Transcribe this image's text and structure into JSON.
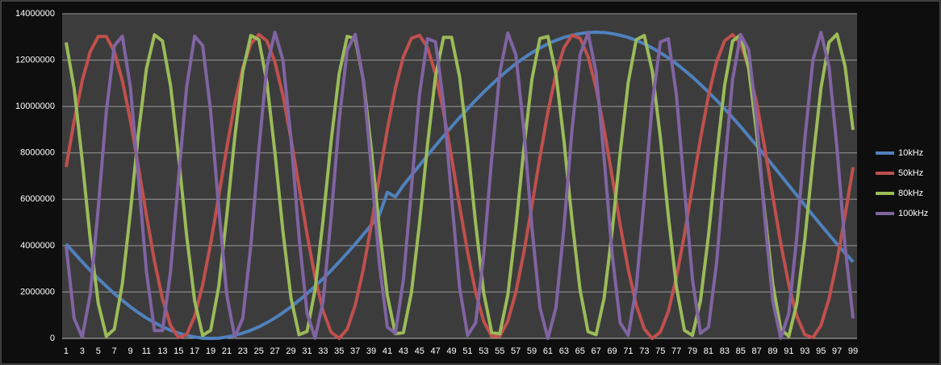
{
  "chart_data": {
    "type": "line",
    "categories": [
      "1",
      null,
      "3",
      null,
      "5",
      null,
      "7",
      null,
      "9",
      null,
      "11",
      null,
      "13",
      null,
      "15",
      null,
      "17",
      null,
      "19",
      null,
      "21",
      null,
      "23",
      null,
      "25",
      null,
      "27",
      null,
      "29",
      null,
      "31",
      null,
      "33",
      null,
      "35",
      null,
      "37",
      null,
      "39",
      null,
      "41",
      null,
      "43",
      null,
      "45",
      null,
      "47",
      null,
      "49",
      null,
      "51",
      null,
      "53",
      null,
      "55",
      null,
      "57",
      null,
      "59",
      null,
      "61",
      null,
      "63",
      null,
      "65",
      null,
      "67",
      null,
      "69",
      null,
      "71",
      null,
      "73",
      null,
      "75",
      null,
      "77",
      null,
      "79",
      null,
      "81",
      null,
      "83",
      null,
      "85",
      null,
      "87",
      null,
      "89",
      null,
      "91",
      null,
      "93",
      null,
      "95",
      null,
      "97",
      null,
      "99"
    ],
    "series": [
      {
        "name": "10kHz",
        "color": "#4f81bd",
        "values": [
          4070000,
          3680000,
          3300000,
          2930000,
          2580000,
          2250000,
          1930000,
          1640000,
          1360000,
          1110000,
          880000,
          680000,
          500000,
          350000,
          230000,
          130000,
          60000,
          10000,
          0,
          10000,
          60000,
          130000,
          230000,
          350000,
          500000,
          680000,
          880000,
          1110000,
          1360000,
          1640000,
          1930000,
          2250000,
          2580000,
          2930000,
          3300000,
          3680000,
          4070000,
          4480000,
          4890000,
          5310000,
          6300000,
          6100000,
          6600000,
          7030000,
          7460000,
          7890000,
          8310000,
          8720000,
          9130000,
          9520000,
          9900000,
          10270000,
          10620000,
          10950000,
          11270000,
          11560000,
          11840000,
          12090000,
          12320000,
          12520000,
          12700000,
          12850000,
          12980000,
          13070000,
          13140000,
          13190000,
          13200000,
          13190000,
          13140000,
          13070000,
          12980000,
          12850000,
          12700000,
          12520000,
          12320000,
          12090000,
          11840000,
          11560000,
          11270000,
          10950000,
          10620000,
          10270000,
          9900000,
          9520000,
          9130000,
          8720000,
          8310000,
          7890000,
          7460000,
          7030000,
          6600000,
          6170000,
          5740000,
          5310000,
          4890000,
          4480000,
          4070000,
          3680000,
          3300000
        ]
      },
      {
        "name": "50kHz",
        "color": "#c0504d",
        "values": [
          7390000,
          9390000,
          11110000,
          12360000,
          13020000,
          13020000,
          12360000,
          11110000,
          9390000,
          7390000,
          5300000,
          3330000,
          1700000,
          560000,
          30000,
          160000,
          950000,
          2310000,
          4090000,
          6130000,
          8210000,
          10130000,
          11670000,
          12690000,
          13100000,
          12830000,
          11920000,
          10470000,
          8610000,
          6550000,
          4490000,
          2630000,
          1180000,
          270000,
          0,
          400000,
          1430000,
          2970000,
          4890000,
          6970000,
          9010000,
          10790000,
          12150000,
          12940000,
          13070000,
          12540000,
          11400000,
          9770000,
          7810000,
          5710000,
          3710000,
          1990000,
          740000,
          90000,
          90000,
          740000,
          1990000,
          3710000,
          5710000,
          7800000,
          9770000,
          11400000,
          12540000,
          13070000,
          12940000,
          12150000,
          10790000,
          9010000,
          6970000,
          4890000,
          2980000,
          1440000,
          410000,
          0,
          270000,
          1170000,
          2630000,
          4480000,
          6550000,
          8610000,
          10470000,
          11920000,
          12830000,
          13100000,
          12700000,
          11670000,
          10130000,
          8220000,
          6140000,
          4090000,
          2310000,
          950000,
          160000,
          30000,
          560000,
          1700000,
          3330000,
          5290000,
          7380000
        ]
      },
      {
        "name": "80kHz",
        "color": "#9bbb59",
        "values": [
          12760000,
          10770000,
          7670000,
          4280000,
          1510000,
          90000,
          400000,
          2360000,
          5450000,
          8840000,
          11630000,
          13090000,
          12820000,
          10900000,
          7840000,
          4450000,
          1620000,
          130000,
          350000,
          2230000,
          5280000,
          8670000,
          11520000,
          13060000,
          12880000,
          11040000,
          8010000,
          4610000,
          1740000,
          160000,
          300000,
          2100000,
          5110000,
          8510000,
          11410000,
          13020000,
          12930000,
          11160000,
          8180000,
          4770000,
          1850000,
          200000,
          250000,
          1980000,
          4940000,
          8340000,
          11290000,
          12980000,
          12980000,
          11280000,
          8340000,
          4940000,
          1970000,
          250000,
          200000,
          1860000,
          4780000,
          8180000,
          11160000,
          12930000,
          13020000,
          11400000,
          8510000,
          5100000,
          2100000,
          290000,
          160000,
          1740000,
          4610000,
          8010000,
          11040000,
          12880000,
          13060000,
          11520000,
          8670000,
          5270000,
          2230000,
          350000,
          130000,
          1630000,
          4450000,
          7840000,
          10900000,
          12820000,
          13090000,
          11630000,
          8830000,
          5440000,
          2360000,
          400000,
          90000,
          1520000,
          4290000,
          7680000,
          10780000,
          12760000,
          13120000,
          11740000,
          8990000
        ]
      },
      {
        "name": "100kHz",
        "color": "#8064a2",
        "values": [
          4000000,
          860000,
          50000,
          1900000,
          5640000,
          9770000,
          12620000,
          13030000,
          10830000,
          6920000,
          2880000,
          340000,
          340000,
          2880000,
          6920000,
          10830000,
          13030000,
          12630000,
          9780000,
          5640000,
          1890000,
          50000,
          870000,
          4000000,
          8180000,
          11730000,
          13200000,
          11990000,
          8600000,
          4400000,
          1090000,
          10000,
          1600000,
          5220000,
          9390000,
          12440000,
          13110000,
          11160000,
          7350000,
          3240000,
          490000,
          220000,
          2530000,
          6490000,
          10500000,
          12920000,
          12790000,
          10150000,
          6070000,
          2200000,
          130000,
          670000,
          3610000,
          7770000,
          11450000,
          13170000,
          12230000,
          9000000,
          4810000,
          1340000,
          0,
          1330000,
          4800000,
          9000000,
          12220000,
          13170000,
          11450000,
          7770000,
          3620000,
          670000,
          130000,
          2200000,
          6070000,
          10140000,
          12780000,
          12920000,
          10500000,
          6490000,
          2540000,
          220000,
          490000,
          3240000,
          7350000,
          11160000,
          13110000,
          12430000,
          9400000,
          5220000,
          1610000,
          10000,
          1090000,
          4400000,
          8600000,
          11990000,
          13200000,
          11730000,
          8190000,
          4000000,
          860000
        ]
      }
    ],
    "ylim": [
      0,
      14000000
    ],
    "yticks": [
      0,
      2000000,
      4000000,
      6000000,
      8000000,
      10000000,
      12000000,
      14000000
    ],
    "grid": true,
    "legend": "right"
  }
}
